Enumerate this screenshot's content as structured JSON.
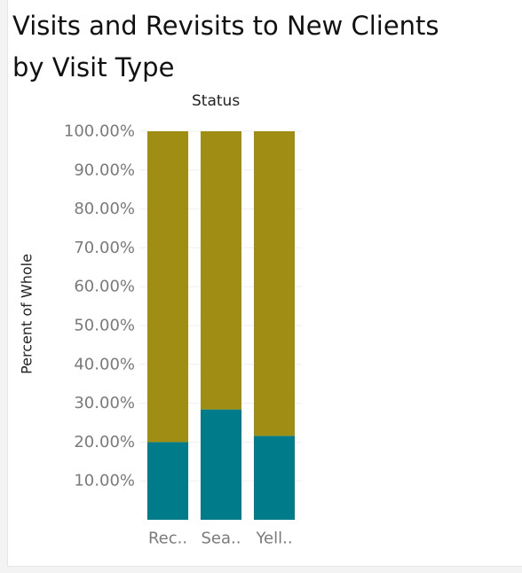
{
  "title_line1": "Visits and Revisits to New Clients",
  "title_line2": "by Visit Type",
  "legend_header": "Status",
  "colors": {
    "segment_bottom": "#007B8A",
    "segment_top": "#A08E14",
    "tick_text": "#7a7a7a",
    "grid": "#efefef"
  },
  "chart_data": {
    "type": "bar",
    "stacked": true,
    "normalized": true,
    "categories": [
      "Rec..",
      "Sea..",
      "Yell.."
    ],
    "series": [
      {
        "values": [
          20.0,
          28.4,
          21.6
        ]
      },
      {
        "values": [
          80.0,
          71.6,
          78.4
        ]
      }
    ],
    "ylabel": "Percent of Whole",
    "ylim": [
      0,
      100
    ],
    "yticks": [
      10,
      20,
      30,
      40,
      50,
      60,
      70,
      80,
      90,
      100
    ],
    "ytick_labels": [
      "10.00%",
      "20.00%",
      "30.00%",
      "40.00%",
      "50.00%",
      "60.00%",
      "70.00%",
      "80.00%",
      "90.00%",
      "100.00%"
    ],
    "grid": true,
    "legend": "none"
  }
}
